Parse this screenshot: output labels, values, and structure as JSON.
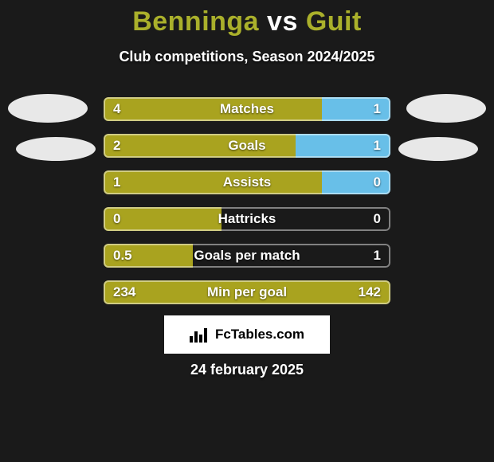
{
  "background_color": "#1a1a1a",
  "title": {
    "player1": "Benninga",
    "vs": "vs",
    "player2": "Guit",
    "color": "#aab02b",
    "vs_color": "#ffffff",
    "fontsize": 34
  },
  "subtitle": "Club competitions, Season 2024/2025",
  "avatars": {
    "left_color": "#e8e8e8",
    "right_color": "#e8e8e8"
  },
  "colors": {
    "left_bar": "#a9a31f",
    "right_bar": "#68bfe8",
    "frame": "rgba(255,255,255,0.45)"
  },
  "rows": [
    {
      "label": "Matches",
      "left": "4",
      "right": "1",
      "left_pct": 76,
      "right_pct": 24
    },
    {
      "label": "Goals",
      "left": "2",
      "right": "1",
      "left_pct": 67,
      "right_pct": 33
    },
    {
      "label": "Assists",
      "left": "1",
      "right": "0",
      "left_pct": 76,
      "right_pct": 24
    },
    {
      "label": "Hattricks",
      "left": "0",
      "right": "0",
      "left_pct": 41,
      "right_pct": 0
    },
    {
      "label": "Goals per match",
      "left": "0.5",
      "right": "1",
      "left_pct": 31,
      "right_pct": 0
    },
    {
      "label": "Min per goal",
      "left": "234",
      "right": "142",
      "left_pct": 100,
      "right_pct": 0
    }
  ],
  "logo_text": "FcTables.com",
  "date": "24 february 2025"
}
